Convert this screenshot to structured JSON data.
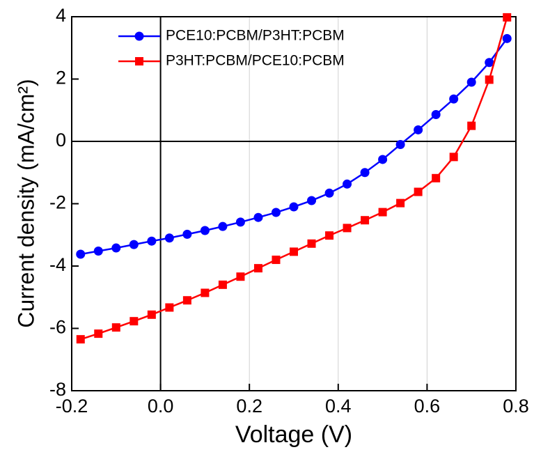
{
  "chart_data": {
    "type": "line",
    "xlabel": "Voltage (V)",
    "ylabel": "Current density (mA/cm²)",
    "x": [
      -0.18,
      -0.14,
      -0.1,
      -0.06,
      -0.02,
      0.02,
      0.06,
      0.1,
      0.14,
      0.18,
      0.22,
      0.26,
      0.3,
      0.34,
      0.38,
      0.42,
      0.46,
      0.5,
      0.54,
      0.58,
      0.62,
      0.66,
      0.7,
      0.74,
      0.78
    ],
    "series": [
      {
        "name": "PCE10:PCBM/P3HT:PCBM",
        "color": "#0000ff",
        "marker": "circle",
        "values": [
          -3.62,
          -3.52,
          -3.42,
          -3.31,
          -3.2,
          -3.1,
          -2.98,
          -2.86,
          -2.73,
          -2.59,
          -2.44,
          -2.28,
          -2.1,
          -1.9,
          -1.66,
          -1.37,
          -1.0,
          -0.58,
          -0.1,
          0.37,
          0.86,
          1.36,
          1.9,
          2.53,
          3.3
        ]
      },
      {
        "name": "P3HT:PCBM/PCE10:PCBM",
        "color": "#ff0000",
        "marker": "square",
        "values": [
          -6.35,
          -6.17,
          -5.97,
          -5.77,
          -5.56,
          -5.33,
          -5.1,
          -4.86,
          -4.6,
          -4.34,
          -4.07,
          -3.8,
          -3.54,
          -3.28,
          -3.02,
          -2.78,
          -2.53,
          -2.27,
          -1.98,
          -1.62,
          -1.18,
          -0.5,
          0.5,
          1.98,
          3.98
        ]
      }
    ],
    "xlim": [
      -0.2,
      0.8
    ],
    "ylim": [
      -8,
      4
    ],
    "xticks": [
      -0.2,
      {
        "value": 0,
        "label": "0.0"
      },
      0.2,
      0.4,
      0.6,
      0.8
    ],
    "yticks": [
      -8,
      -6,
      -4,
      -2,
      0,
      2,
      4
    ],
    "grid": true,
    "legend": "upper left"
  }
}
